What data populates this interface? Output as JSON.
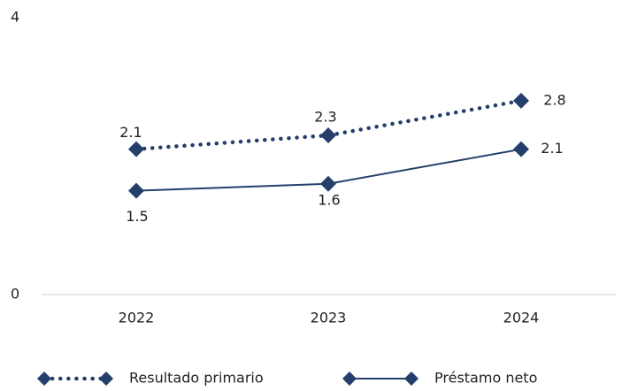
{
  "chart_data": {
    "type": "line",
    "categories": [
      "2022",
      "2023",
      "2024"
    ],
    "series": [
      {
        "name": "Resultado primario",
        "color": "#243f6b",
        "dash": "dotted",
        "values": [
          2.1,
          2.3,
          2.8
        ]
      },
      {
        "name": "Préstamo neto",
        "color": "#243f6b",
        "dash": "solid",
        "values": [
          1.5,
          1.6,
          2.1
        ]
      }
    ],
    "ylim": [
      0,
      4
    ],
    "yticks": [
      0,
      4
    ],
    "grid": false,
    "legend": "bottom"
  }
}
